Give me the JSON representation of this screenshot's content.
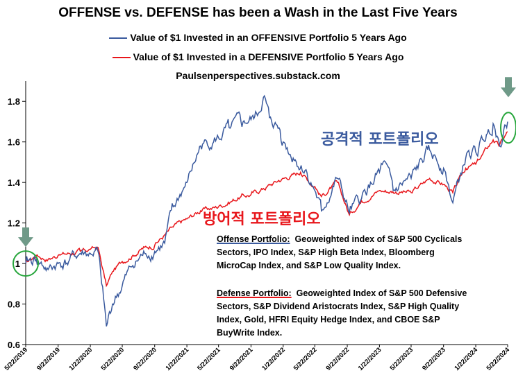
{
  "title": "OFFENSE vs. DEFENSE has been a Wash in the Last Five Years",
  "subtitle": "Paulsenperspectives.substack.com",
  "colors": {
    "offense": "#3a5a9e",
    "defense": "#e8161b",
    "axis": "#000000",
    "circle": "#27a63c",
    "arrow": "#6f9a88"
  },
  "chart_data": {
    "type": "line",
    "title": "OFFENSE vs. DEFENSE has been a Wash in the Last Five Years",
    "xlabel": "",
    "ylabel": "",
    "ylim": [
      0.6,
      1.9
    ],
    "yticks": [
      0.6,
      0.8,
      1,
      1.2,
      1.4,
      1.6,
      1.8
    ],
    "ytick_labels": [
      "0.6",
      "0.8",
      "1",
      "1.2",
      "1.4",
      "1.6",
      "1.8"
    ],
    "xlim": [
      "2019-05-22",
      "2024-05-22"
    ],
    "xtick_labels": [
      "5/22/2019",
      "9/22/2019",
      "1/22/2020",
      "5/22/2020",
      "9/22/2020",
      "1/22/2021",
      "5/22/2021",
      "9/22/2021",
      "1/22/2022",
      "5/22/2022",
      "9/22/2022",
      "1/22/2023",
      "5/22/2023",
      "9/22/2023",
      "1/22/2024",
      "5/22/2024"
    ],
    "grid": false,
    "legend_position": "top-center",
    "series": [
      {
        "name": "Value of $1 Invested in an OFFENSIVE Portfolio 5 Years Ago",
        "color": "#3a5a9e",
        "points": [
          [
            "2019-05-22",
            1.0
          ],
          [
            "2019-07-01",
            1.02
          ],
          [
            "2019-08-15",
            0.97
          ],
          [
            "2019-09-22",
            1.0
          ],
          [
            "2019-11-01",
            1.01
          ],
          [
            "2019-12-15",
            1.05
          ],
          [
            "2020-01-22",
            1.05
          ],
          [
            "2020-02-20",
            1.06
          ],
          [
            "2020-03-05",
            0.9
          ],
          [
            "2020-03-23",
            0.69
          ],
          [
            "2020-04-15",
            0.8
          ],
          [
            "2020-05-22",
            0.89
          ],
          [
            "2020-07-01",
            0.99
          ],
          [
            "2020-08-15",
            1.05
          ],
          [
            "2020-09-22",
            1.06
          ],
          [
            "2020-10-30",
            1.1
          ],
          [
            "2020-12-01",
            1.28
          ],
          [
            "2021-01-22",
            1.4
          ],
          [
            "2021-03-15",
            1.58
          ],
          [
            "2021-05-22",
            1.62
          ],
          [
            "2021-07-01",
            1.67
          ],
          [
            "2021-08-15",
            1.7
          ],
          [
            "2021-09-22",
            1.71
          ],
          [
            "2021-10-20",
            1.74
          ],
          [
            "2021-11-08",
            1.82
          ],
          [
            "2021-12-01",
            1.72
          ],
          [
            "2022-01-10",
            1.66
          ],
          [
            "2022-01-22",
            1.6
          ],
          [
            "2022-03-01",
            1.52
          ],
          [
            "2022-04-15",
            1.46
          ],
          [
            "2022-05-22",
            1.36
          ],
          [
            "2022-06-16",
            1.26
          ],
          [
            "2022-08-16",
            1.42
          ],
          [
            "2022-09-30",
            1.25
          ],
          [
            "2022-11-15",
            1.32
          ],
          [
            "2023-01-22",
            1.45
          ],
          [
            "2023-02-05",
            1.5
          ],
          [
            "2023-03-15",
            1.36
          ],
          [
            "2023-05-22",
            1.42
          ],
          [
            "2023-07-31",
            1.56
          ],
          [
            "2023-09-22",
            1.47
          ],
          [
            "2023-10-27",
            1.3
          ],
          [
            "2023-12-15",
            1.52
          ],
          [
            "2024-01-22",
            1.55
          ],
          [
            "2024-03-28",
            1.69
          ],
          [
            "2024-04-19",
            1.6
          ],
          [
            "2024-05-22",
            1.7
          ]
        ]
      },
      {
        "name": "Value of $1 Invested in a DEFENSIVE Portfolio 5 Years Ago",
        "color": "#e8161b",
        "points": [
          [
            "2019-05-22",
            1.0
          ],
          [
            "2019-07-01",
            1.04
          ],
          [
            "2019-08-15",
            1.02
          ],
          [
            "2019-09-22",
            1.04
          ],
          [
            "2019-12-15",
            1.06
          ],
          [
            "2020-01-22",
            1.07
          ],
          [
            "2020-02-20",
            1.08
          ],
          [
            "2020-03-23",
            0.89
          ],
          [
            "2020-04-15",
            0.96
          ],
          [
            "2020-05-22",
            1.01
          ],
          [
            "2020-08-15",
            1.08
          ],
          [
            "2020-09-22",
            1.09
          ],
          [
            "2020-12-01",
            1.18
          ],
          [
            "2021-01-22",
            1.22
          ],
          [
            "2021-03-15",
            1.26
          ],
          [
            "2021-05-22",
            1.28
          ],
          [
            "2021-08-15",
            1.33
          ],
          [
            "2021-09-22",
            1.34
          ],
          [
            "2021-11-08",
            1.37
          ],
          [
            "2022-01-05",
            1.41
          ],
          [
            "2022-03-29",
            1.45
          ],
          [
            "2022-05-22",
            1.38
          ],
          [
            "2022-06-16",
            1.33
          ],
          [
            "2022-08-16",
            1.4
          ],
          [
            "2022-09-30",
            1.24
          ],
          [
            "2022-11-15",
            1.31
          ],
          [
            "2023-01-22",
            1.36
          ],
          [
            "2023-05-22",
            1.35
          ],
          [
            "2023-07-31",
            1.42
          ],
          [
            "2023-09-22",
            1.39
          ],
          [
            "2023-10-27",
            1.35
          ],
          [
            "2023-12-15",
            1.47
          ],
          [
            "2024-01-22",
            1.49
          ],
          [
            "2024-03-28",
            1.61
          ],
          [
            "2024-04-19",
            1.58
          ],
          [
            "2024-05-22",
            1.65
          ]
        ]
      }
    ],
    "annotations": [
      {
        "text": "공격적 포트폴리오",
        "color": "#3a5a9e"
      },
      {
        "text": "방어적 포트폴리오",
        "color": "#e8161b"
      }
    ]
  },
  "notes": {
    "offense": {
      "heading": "Offense Portfolio:",
      "lines": [
        "Geoweighted index of S&P 500 Cyclicals",
        "Sectors, IPO Index, S&P High Beta Index, Bloomberg",
        "MicroCap Index, and S&P  Low Quality Index."
      ]
    },
    "defense": {
      "heading": "Defense Portfolio:",
      "lines": [
        "Geoweighted Index of S&P 500 Defensive",
        "Sectors, S&P Dividend Aristocrats Index, S&P High Quality",
        "Index, Gold, HFRI Equity Hedge Index, and CBOE S&P",
        "BuyWrite Index."
      ]
    }
  }
}
